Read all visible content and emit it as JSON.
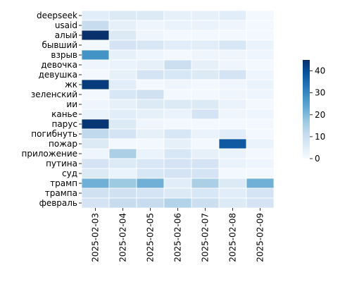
{
  "chart_data": {
    "type": "heatmap",
    "title": "",
    "xlabel": "",
    "ylabel": "",
    "columns": [
      "2025-02-03",
      "2025-02-04",
      "2025-02-05",
      "2025-02-06",
      "2025-02-07",
      "2025-02-08",
      "2025-02-09"
    ],
    "rows": [
      "deepseek",
      "usaid",
      "алый",
      "бывший",
      "взрыв",
      "девочка",
      "девушка",
      "жк",
      "зеленский",
      "ии",
      "канье",
      "парус",
      "погибнуть",
      "пожар",
      "приложение",
      "путина",
      "суд",
      "трамп",
      "трампа",
      "февраль"
    ],
    "values": [
      [
        5,
        6,
        6,
        4,
        4,
        5,
        1
      ],
      [
        11,
        4,
        2,
        3,
        3,
        2,
        1
      ],
      [
        45,
        6,
        2,
        1,
        1,
        1,
        1
      ],
      [
        1,
        8,
        7,
        5,
        5,
        7,
        3
      ],
      [
        28,
        4,
        2,
        1,
        2,
        2,
        2
      ],
      [
        2,
        3,
        4,
        10,
        4,
        2,
        1
      ],
      [
        1,
        4,
        8,
        7,
        6,
        8,
        2
      ],
      [
        43,
        5,
        1,
        2,
        1,
        2,
        3
      ],
      [
        1,
        7,
        9,
        1,
        1,
        2,
        2
      ],
      [
        2,
        4,
        6,
        6,
        6,
        3,
        1
      ],
      [
        3,
        5,
        4,
        3,
        8,
        2,
        2
      ],
      [
        44,
        6,
        2,
        1,
        1,
        1,
        1
      ],
      [
        12,
        8,
        4,
        7,
        3,
        5,
        1
      ],
      [
        6,
        1,
        1,
        4,
        1,
        38,
        3
      ],
      [
        2,
        15,
        3,
        7,
        4,
        3,
        1
      ],
      [
        8,
        6,
        7,
        8,
        8,
        3,
        2
      ],
      [
        6,
        3,
        7,
        8,
        8,
        1,
        1
      ],
      [
        22,
        17,
        22,
        5,
        15,
        6,
        22
      ],
      [
        9,
        9,
        8,
        6,
        7,
        5,
        8
      ],
      [
        8,
        11,
        11,
        14,
        10,
        6,
        8
      ]
    ],
    "vmin": 0,
    "vmax": 45,
    "colormap": "Blues",
    "colorbar_ticks": [
      0,
      10,
      20,
      30,
      40
    ]
  }
}
